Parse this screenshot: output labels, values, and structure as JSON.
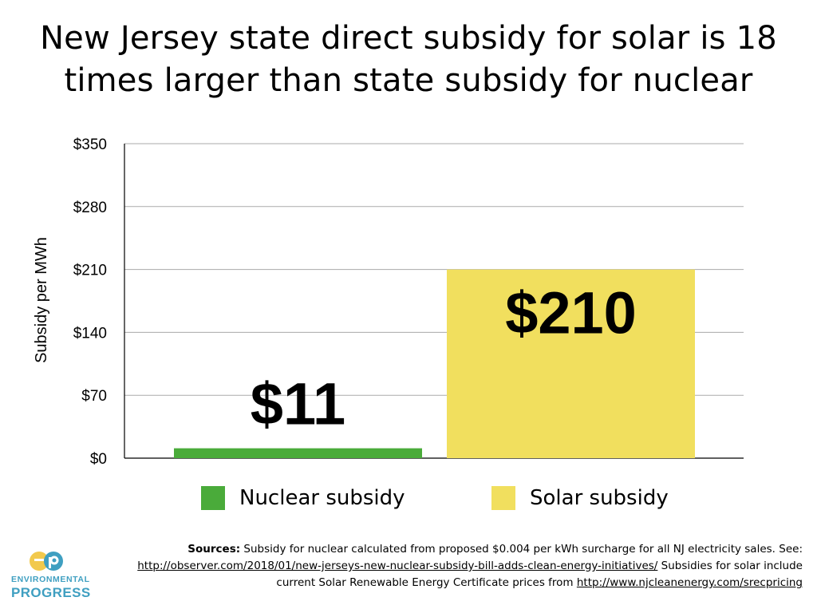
{
  "title_lines": [
    "New Jersey state direct subsidy for solar is 18",
    "times larger than state subsidy for nuclear"
  ],
  "chart_data": {
    "type": "bar",
    "title": "New Jersey state direct subsidy for solar is 18 times larger than state subsidy for nuclear",
    "ylabel": "Subsidy per MWh",
    "xlabel": "",
    "ylim": [
      0,
      350
    ],
    "y_ticks": [
      0,
      70,
      140,
      210,
      280,
      350
    ],
    "y_tick_labels": [
      "$0",
      "$70",
      "$140",
      "$210",
      "$280",
      "$350"
    ],
    "grid": true,
    "legend_position": "bottom",
    "series": [
      {
        "name": "Nuclear subsidy",
        "value": 11,
        "data_label": "$11",
        "color": "#4aab3a"
      },
      {
        "name": "Solar subsidy",
        "value": 210,
        "data_label": "$210",
        "color": "#f1df5e"
      }
    ]
  },
  "sources": {
    "label": "Sources:",
    "text1": " Subsidy for nuclear calculated from proposed $0.004 per kWh surcharge for all NJ electricity sales. See: ",
    "link1": "http://observer.com/2018/01/new-jerseys-new-nuclear-subsidy-bill-adds-clean-energy-initiatives/",
    "text2": "  Subsidies for solar include current Solar Renewable Energy Certificate prices from ",
    "link2": "http://www.njcleanenergy.com/srecpricing"
  },
  "logo": {
    "line1": "ENVIRONMENTAL",
    "line2": "PROGRESS",
    "color": "#3f9fc1"
  }
}
